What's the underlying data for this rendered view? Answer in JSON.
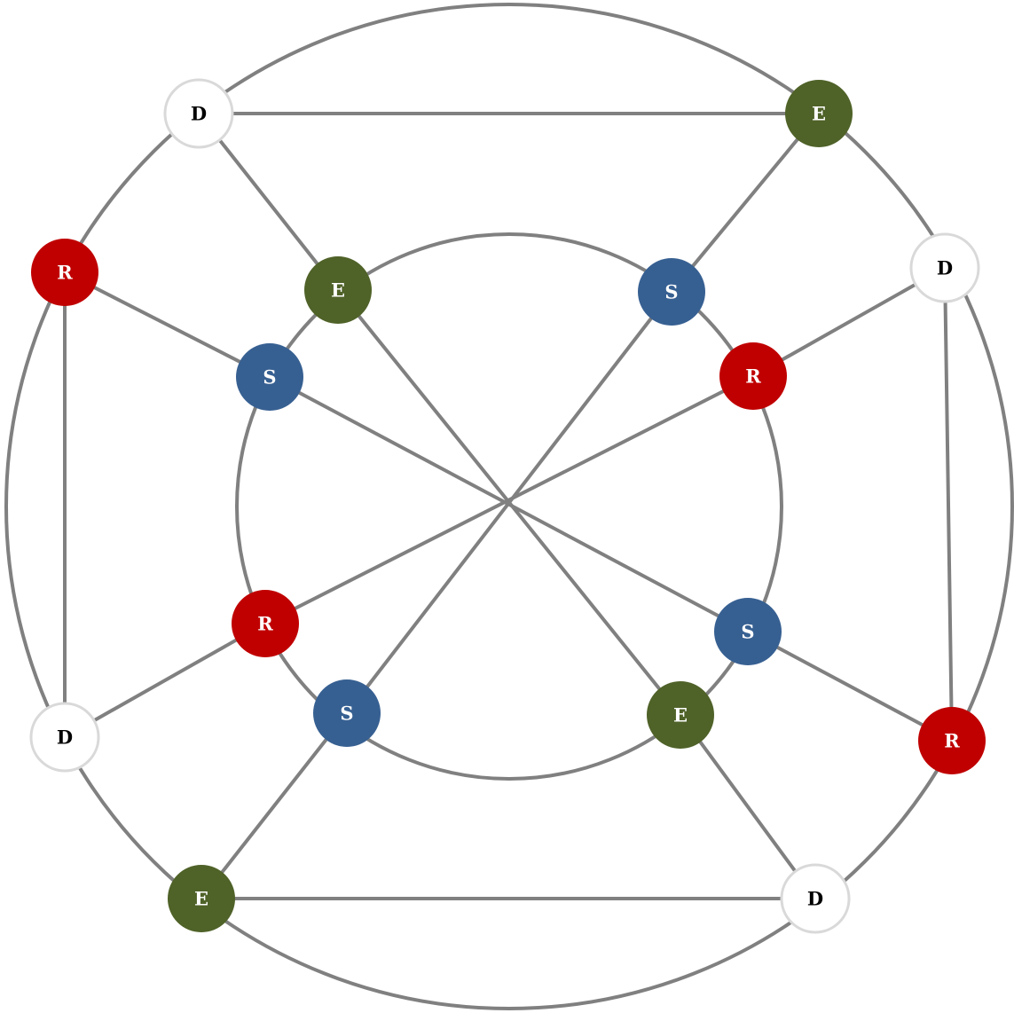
{
  "colors": {
    "edge": "#808080",
    "S": "#376092",
    "E": "#4f6228",
    "R": "#c00000",
    "D": "#ffffff",
    "D_stroke": "#d9d9d9",
    "label_on_dark": "#ffffff",
    "label_on_light": "#000000"
  },
  "nodes": [
    {
      "id": "d_tl",
      "type": "D",
      "label": "D"
    },
    {
      "id": "e_tr",
      "type": "E",
      "label": "E"
    },
    {
      "id": "r_l",
      "type": "R",
      "label": "R"
    },
    {
      "id": "d_r",
      "type": "D",
      "label": "D"
    },
    {
      "id": "e_in_tl",
      "type": "E",
      "label": "E"
    },
    {
      "id": "s_in_tr",
      "type": "S",
      "label": "S"
    },
    {
      "id": "s_in_l",
      "type": "S",
      "label": "S"
    },
    {
      "id": "r_in_r",
      "type": "R",
      "label": "R"
    },
    {
      "id": "r_in_l",
      "type": "R",
      "label": "R"
    },
    {
      "id": "s_in_r",
      "type": "S",
      "label": "S"
    },
    {
      "id": "s_in_bl",
      "type": "S",
      "label": "S"
    },
    {
      "id": "e_in_br",
      "type": "E",
      "label": "E"
    },
    {
      "id": "d_l",
      "type": "D",
      "label": "D"
    },
    {
      "id": "r_r",
      "type": "R",
      "label": "R"
    },
    {
      "id": "e_bl",
      "type": "E",
      "label": "E"
    },
    {
      "id": "d_br",
      "type": "D",
      "label": "D"
    }
  ],
  "edges": [
    [
      "d_tl",
      "e_tr"
    ],
    [
      "e_bl",
      "d_br"
    ],
    [
      "r_l",
      "d_l"
    ],
    [
      "d_r",
      "r_r"
    ],
    [
      "d_tl",
      "e_in_tl"
    ],
    [
      "e_tr",
      "s_in_tr"
    ],
    [
      "r_l",
      "s_in_l"
    ],
    [
      "d_r",
      "r_in_r"
    ],
    [
      "e_in_tl",
      "e_in_br"
    ],
    [
      "s_in_tr",
      "s_in_bl"
    ],
    [
      "s_in_l",
      "s_in_r"
    ],
    [
      "r_in_r",
      "r_in_l"
    ],
    [
      "d_l",
      "r_in_l"
    ],
    [
      "e_bl",
      "s_in_bl"
    ],
    [
      "r_r",
      "s_in_r"
    ],
    [
      "d_br",
      "e_in_br"
    ]
  ]
}
